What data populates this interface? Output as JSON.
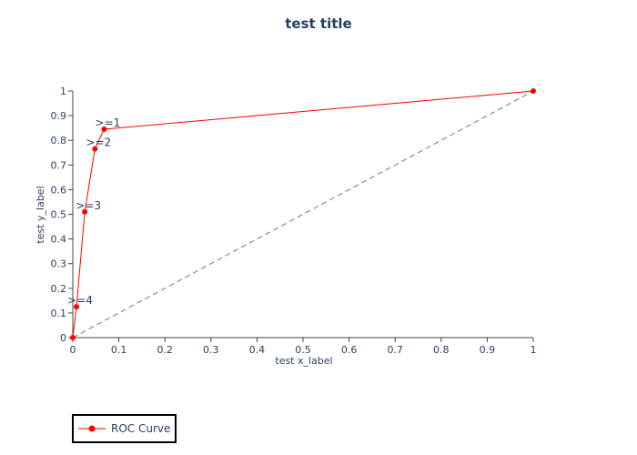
{
  "chart_data": {
    "type": "line",
    "title": "test title",
    "xlabel": "test x_label",
    "ylabel": "test y_label",
    "xlim": [
      0,
      1
    ],
    "ylim": [
      0,
      1
    ],
    "x_ticks": [
      "0",
      "0.1",
      "0.2",
      "0.3",
      "0.4",
      "0.5",
      "0.6",
      "0.7",
      "0.8",
      "0.9",
      "1"
    ],
    "y_ticks": [
      "0",
      "0.1",
      "0.2",
      "0.3",
      "0.4",
      "0.5",
      "0.6",
      "0.7",
      "0.8",
      "0.9",
      "1"
    ],
    "grid": false,
    "legend_position": "bottom-left",
    "series": [
      {
        "name": "ROC Curve",
        "color": "#ff0000",
        "mode": "lines+markers",
        "x": [
          0,
          0.008,
          0.026,
          0.048,
          0.068,
          1
        ],
        "y": [
          0,
          0.125,
          0.51,
          0.765,
          0.845,
          1
        ],
        "labels": [
          "",
          ">=4",
          ">=3",
          ">=2",
          ">=1",
          ""
        ]
      }
    ],
    "reference_line": {
      "color": "#777777",
      "dash": "dashed",
      "x": [
        0,
        1
      ],
      "y": [
        0,
        1
      ]
    }
  }
}
